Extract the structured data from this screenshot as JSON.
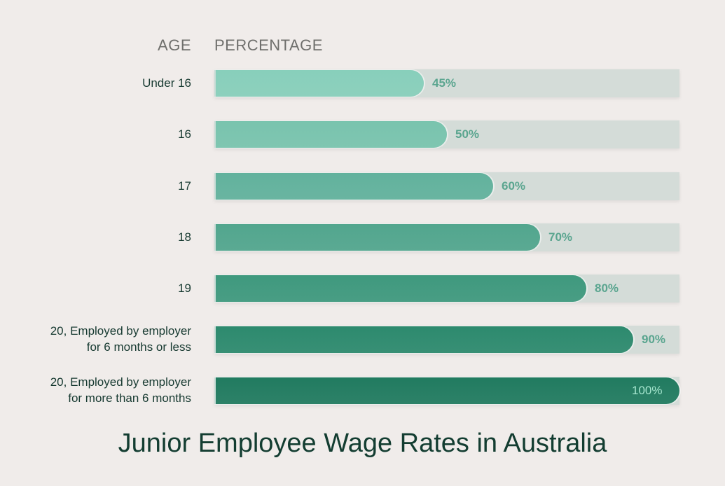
{
  "chart_data": {
    "type": "bar",
    "orientation": "horizontal",
    "title": "Junior Employee Wage Rates in Australia",
    "xlabel": "PERCENTAGE",
    "ylabel": "AGE",
    "xlim": [
      0,
      100
    ],
    "categories": [
      "Under 16",
      "16",
      "17",
      "18",
      "19",
      "20, Employed by employer for 6 months or less",
      "20, Employed by employer for more than 6 months"
    ],
    "values": [
      45,
      50,
      60,
      70,
      80,
      90,
      100
    ],
    "value_labels": [
      "45%",
      "50%",
      "60%",
      "70%",
      "80%",
      "90%",
      "100%"
    ],
    "grid": false,
    "legend": null
  },
  "headers": {
    "age": "AGE",
    "percentage": "PERCENTAGE"
  },
  "rows": [
    {
      "lines": [
        "Under 16"
      ],
      "value": 45,
      "label": "45%",
      "color": "#88cfbb"
    },
    {
      "lines": [
        "16"
      ],
      "value": 50,
      "label": "50%",
      "color": "#79c4ae"
    },
    {
      "lines": [
        "17"
      ],
      "value": 60,
      "label": "60%",
      "color": "#62b29d"
    },
    {
      "lines": [
        "18"
      ],
      "value": 70,
      "label": "70%",
      "color": "#52a68e"
    },
    {
      "lines": [
        "19"
      ],
      "value": 80,
      "label": "80%",
      "color": "#3f997e"
    },
    {
      "lines": [
        "20, Employed by employer",
        "for 6 months or less"
      ],
      "value": 90,
      "label": "90%",
      "color": "#2d8a6e"
    },
    {
      "lines": [
        "20, Employed by employer",
        "for more than 6 months"
      ],
      "value": 100,
      "label": "100%",
      "color": "#217b60"
    }
  ],
  "title": "Junior Employee Wage Rates in Australia"
}
